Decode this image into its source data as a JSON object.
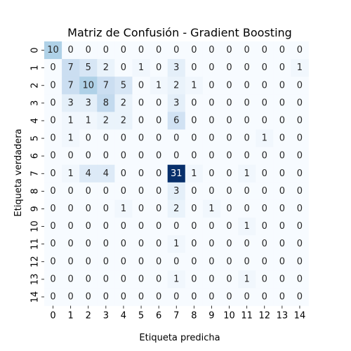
{
  "chart_data": {
    "type": "heatmap",
    "title": "Matriz de Confusión - Gradient Boosting",
    "xlabel": "Etiqueta predicha",
    "ylabel": "Etiqueta verdadera",
    "x_categories": [
      "0",
      "1",
      "2",
      "3",
      "4",
      "5",
      "6",
      "7",
      "8",
      "9",
      "10",
      "11",
      "12",
      "13",
      "14"
    ],
    "y_categories": [
      "0",
      "1",
      "2",
      "3",
      "4",
      "5",
      "6",
      "7",
      "8",
      "9",
      "10",
      "11",
      "12",
      "13",
      "14"
    ],
    "colormap": "Blues",
    "color_low": "#f7fbff",
    "color_high": "#08306b",
    "value_range": [
      0,
      31
    ],
    "colorbar": false,
    "matrix": [
      [
        10,
        0,
        0,
        0,
        0,
        0,
        0,
        0,
        0,
        0,
        0,
        0,
        0,
        0,
        0
      ],
      [
        0,
        7,
        5,
        2,
        0,
        1,
        0,
        3,
        0,
        0,
        0,
        0,
        0,
        0,
        1
      ],
      [
        0,
        7,
        10,
        7,
        5,
        0,
        1,
        2,
        1,
        0,
        0,
        0,
        0,
        0,
        0
      ],
      [
        0,
        3,
        3,
        8,
        2,
        0,
        0,
        3,
        0,
        0,
        0,
        0,
        0,
        0,
        0
      ],
      [
        0,
        1,
        1,
        2,
        2,
        0,
        0,
        6,
        0,
        0,
        0,
        0,
        0,
        0,
        0
      ],
      [
        0,
        1,
        0,
        0,
        0,
        0,
        0,
        0,
        0,
        0,
        0,
        0,
        1,
        0,
        0
      ],
      [
        0,
        0,
        0,
        0,
        0,
        0,
        0,
        0,
        0,
        0,
        0,
        0,
        0,
        0,
        0
      ],
      [
        0,
        1,
        4,
        4,
        0,
        0,
        0,
        31,
        1,
        0,
        0,
        1,
        0,
        0,
        0
      ],
      [
        0,
        0,
        0,
        0,
        0,
        0,
        0,
        3,
        0,
        0,
        0,
        0,
        0,
        0,
        0
      ],
      [
        0,
        0,
        0,
        0,
        1,
        0,
        0,
        2,
        0,
        1,
        0,
        0,
        0,
        0,
        0
      ],
      [
        0,
        0,
        0,
        0,
        0,
        0,
        0,
        0,
        0,
        0,
        0,
        1,
        0,
        0,
        0
      ],
      [
        0,
        0,
        0,
        0,
        0,
        0,
        0,
        1,
        0,
        0,
        0,
        0,
        0,
        0,
        0
      ],
      [
        0,
        0,
        0,
        0,
        0,
        0,
        0,
        0,
        0,
        0,
        0,
        0,
        0,
        0,
        0
      ],
      [
        0,
        0,
        0,
        0,
        0,
        0,
        0,
        1,
        0,
        0,
        0,
        1,
        0,
        0,
        0
      ],
      [
        0,
        0,
        0,
        0,
        0,
        0,
        0,
        0,
        0,
        0,
        0,
        0,
        0,
        0,
        0
      ]
    ]
  }
}
